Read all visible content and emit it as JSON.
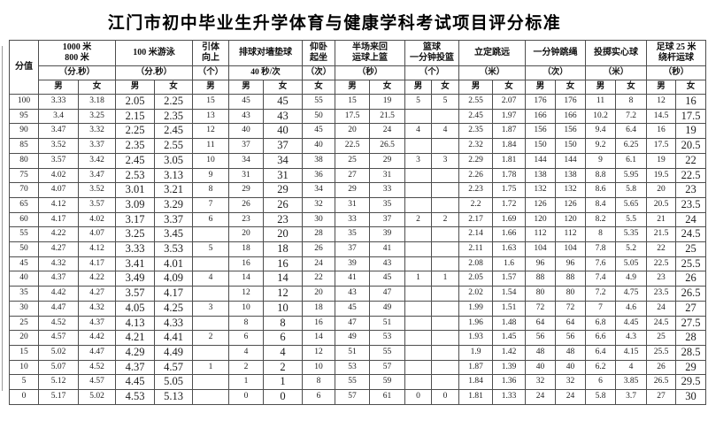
{
  "title": "江门市初中毕业生升学体育与健康学科考试项目评分标准",
  "table": {
    "score_header": "分值",
    "groups": [
      {
        "name": "1000 米\n800 米",
        "unit": "（分.秒）",
        "genders": [
          "男",
          "女"
        ]
      },
      {
        "name": "100 米游泳",
        "unit": "（分.秒）",
        "genders": [
          "男",
          "女"
        ]
      },
      {
        "name": "引体\n向上",
        "unit": "（个）",
        "genders": [
          "男"
        ]
      },
      {
        "name": "排球对墙垫球",
        "unit": "40 秒/次",
        "genders": [
          "男",
          "女"
        ]
      },
      {
        "name": "仰卧\n起坐",
        "unit": "（次）",
        "genders": [
          "女"
        ]
      },
      {
        "name": "半场来回\n运球上篮",
        "unit": "（秒）",
        "genders": [
          "男",
          "女"
        ]
      },
      {
        "name": "篮球\n一分钟投篮",
        "unit": "（个）",
        "genders": [
          "男",
          "女"
        ]
      },
      {
        "name": "立定跳远",
        "unit": "（米）",
        "genders": [
          "男",
          "女"
        ]
      },
      {
        "name": "一分钟跳绳",
        "unit": "（次）",
        "genders": [
          "男",
          "女"
        ]
      },
      {
        "name": "投掷实心球",
        "unit": "（米）",
        "genders": [
          "男",
          "女"
        ]
      },
      {
        "name": "足球 25 米\n绕杆运球",
        "unit": "（秒）",
        "genders": [
          "男",
          "女"
        ]
      }
    ],
    "rows": [
      {
        "score": "100",
        "values": [
          "3.33",
          "3.18",
          "2.05",
          "2.25",
          "15",
          "45",
          "45",
          "55",
          "15",
          "19",
          "5",
          "5",
          "2.55",
          "2.07",
          "176",
          "176",
          "11",
          "8",
          "12",
          "16"
        ]
      },
      {
        "score": "95",
        "values": [
          "3.4",
          "3.25",
          "2.15",
          "2.35",
          "13",
          "43",
          "43",
          "50",
          "17.5",
          "21.5",
          "",
          "",
          "2.45",
          "1.97",
          "166",
          "166",
          "10.2",
          "7.2",
          "14.5",
          "17.5"
        ]
      },
      {
        "score": "90",
        "values": [
          "3.47",
          "3.32",
          "2.25",
          "2.45",
          "12",
          "40",
          "40",
          "45",
          "20",
          "24",
          "4",
          "4",
          "2.35",
          "1.87",
          "156",
          "156",
          "9.4",
          "6.4",
          "16",
          "19"
        ]
      },
      {
        "score": "85",
        "values": [
          "3.52",
          "3.37",
          "2.35",
          "2.55",
          "11",
          "37",
          "37",
          "40",
          "22.5",
          "26.5",
          "",
          "",
          "2.32",
          "1.84",
          "150",
          "150",
          "9.2",
          "6.25",
          "17.5",
          "20.5"
        ]
      },
      {
        "score": "80",
        "values": [
          "3.57",
          "3.42",
          "2.45",
          "3.05",
          "10",
          "34",
          "34",
          "38",
          "25",
          "29",
          "3",
          "3",
          "2.29",
          "1.81",
          "144",
          "144",
          "9",
          "6.1",
          "19",
          "22"
        ]
      },
      {
        "score": "75",
        "values": [
          "4.02",
          "3.47",
          "2.53",
          "3.13",
          "9",
          "31",
          "31",
          "36",
          "27",
          "31",
          "",
          "",
          "2.26",
          "1.78",
          "138",
          "138",
          "8.8",
          "5.95",
          "19.5",
          "22.5"
        ]
      },
      {
        "score": "70",
        "values": [
          "4.07",
          "3.52",
          "3.01",
          "3.21",
          "8",
          "29",
          "29",
          "34",
          "29",
          "33",
          "",
          "",
          "2.23",
          "1.75",
          "132",
          "132",
          "8.6",
          "5.8",
          "20",
          "23"
        ]
      },
      {
        "score": "65",
        "values": [
          "4.12",
          "3.57",
          "3.09",
          "3.29",
          "7",
          "26",
          "26",
          "32",
          "31",
          "35",
          "",
          "",
          "2.2",
          "1.72",
          "126",
          "126",
          "8.4",
          "5.65",
          "20.5",
          "23.5"
        ]
      },
      {
        "score": "60",
        "values": [
          "4.17",
          "4.02",
          "3.17",
          "3.37",
          "6",
          "23",
          "23",
          "30",
          "33",
          "37",
          "2",
          "2",
          "2.17",
          "1.69",
          "120",
          "120",
          "8.2",
          "5.5",
          "21",
          "24"
        ]
      },
      {
        "score": "55",
        "values": [
          "4.22",
          "4.07",
          "3.25",
          "3.45",
          "",
          "20",
          "20",
          "28",
          "35",
          "39",
          "",
          "",
          "2.14",
          "1.66",
          "112",
          "112",
          "8",
          "5.35",
          "21.5",
          "24.5"
        ]
      },
      {
        "score": "50",
        "values": [
          "4.27",
          "4.12",
          "3.33",
          "3.53",
          "5",
          "18",
          "18",
          "26",
          "37",
          "41",
          "",
          "",
          "2.11",
          "1.63",
          "104",
          "104",
          "7.8",
          "5.2",
          "22",
          "25"
        ]
      },
      {
        "score": "45",
        "values": [
          "4.32",
          "4.17",
          "3.41",
          "4.01",
          "",
          "16",
          "16",
          "24",
          "39",
          "43",
          "",
          "",
          "2.08",
          "1.6",
          "96",
          "96",
          "7.6",
          "5.05",
          "22.5",
          "25.5"
        ]
      },
      {
        "score": "40",
        "values": [
          "4.37",
          "4.22",
          "3.49",
          "4.09",
          "4",
          "14",
          "14",
          "22",
          "41",
          "45",
          "1",
          "1",
          "2.05",
          "1.57",
          "88",
          "88",
          "7.4",
          "4.9",
          "23",
          "26"
        ]
      },
      {
        "score": "35",
        "values": [
          "4.42",
          "4.27",
          "3.57",
          "4.17",
          "",
          "12",
          "12",
          "20",
          "43",
          "47",
          "",
          "",
          "2.02",
          "1.54",
          "80",
          "80",
          "7.2",
          "4.75",
          "23.5",
          "26.5"
        ]
      },
      {
        "score": "30",
        "values": [
          "4.47",
          "4.32",
          "4.05",
          "4.25",
          "3",
          "10",
          "10",
          "18",
          "45",
          "49",
          "",
          "",
          "1.99",
          "1.51",
          "72",
          "72",
          "7",
          "4.6",
          "24",
          "27"
        ]
      },
      {
        "score": "25",
        "values": [
          "4.52",
          "4.37",
          "4.13",
          "4.33",
          "",
          "8",
          "8",
          "16",
          "47",
          "51",
          "",
          "",
          "1.96",
          "1.48",
          "64",
          "64",
          "6.8",
          "4.45",
          "24.5",
          "27.5"
        ]
      },
      {
        "score": "20",
        "values": [
          "4.57",
          "4.42",
          "4.21",
          "4.41",
          "2",
          "6",
          "6",
          "14",
          "49",
          "53",
          "",
          "",
          "1.93",
          "1.45",
          "56",
          "56",
          "6.6",
          "4.3",
          "25",
          "28"
        ]
      },
      {
        "score": "15",
        "values": [
          "5.02",
          "4.47",
          "4.29",
          "4.49",
          "",
          "4",
          "4",
          "12",
          "51",
          "55",
          "",
          "",
          "1.9",
          "1.42",
          "48",
          "48",
          "6.4",
          "4.15",
          "25.5",
          "28.5"
        ]
      },
      {
        "score": "10",
        "values": [
          "5.07",
          "4.52",
          "4.37",
          "4.57",
          "1",
          "2",
          "2",
          "10",
          "53",
          "57",
          "",
          "",
          "1.87",
          "1.39",
          "40",
          "40",
          "6.2",
          "4",
          "26",
          "29"
        ]
      },
      {
        "score": "5",
        "values": [
          "5.12",
          "4.57",
          "4.45",
          "5.05",
          "",
          "1",
          "1",
          "8",
          "55",
          "59",
          "",
          "",
          "1.84",
          "1.36",
          "32",
          "32",
          "6",
          "3.85",
          "26.5",
          "29.5"
        ]
      },
      {
        "score": "0",
        "values": [
          "5.17",
          "5.02",
          "4.53",
          "5.13",
          "",
          "0",
          "0",
          "6",
          "57",
          "61",
          "0",
          "0",
          "1.81",
          "1.33",
          "24",
          "24",
          "5.8",
          "3.7",
          "27",
          "30"
        ]
      }
    ]
  }
}
